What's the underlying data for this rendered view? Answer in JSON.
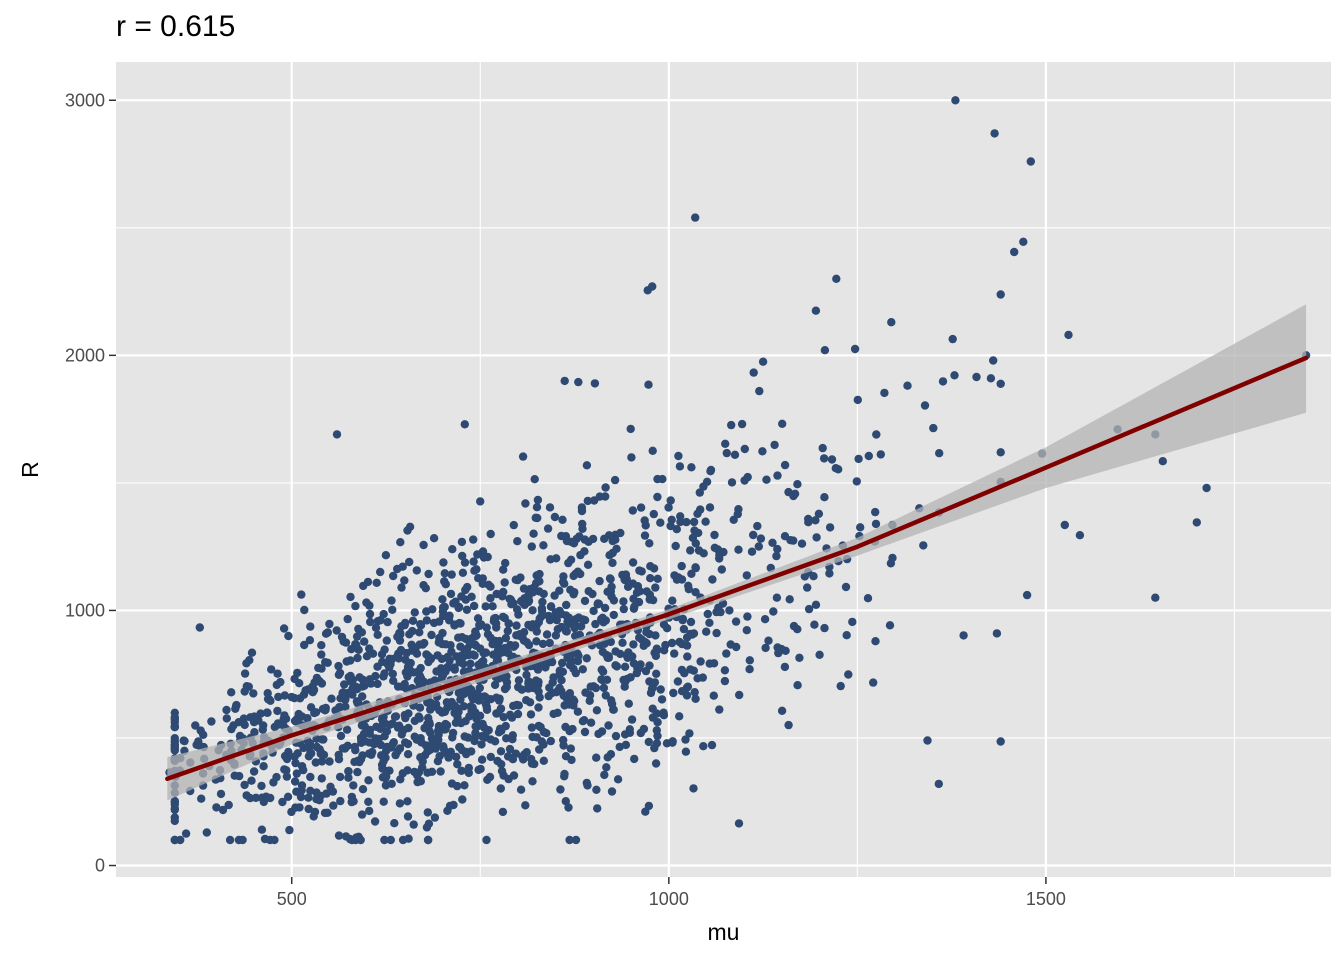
{
  "chart_data": {
    "type": "scatter",
    "title": "r = 0.615",
    "xlabel": "mu",
    "ylabel": "R",
    "xlim": [
      267,
      1878
    ],
    "ylim": [
      -45,
      3150
    ],
    "x_ticks": [
      500,
      1000,
      1500
    ],
    "x_tick_labels": [
      "500",
      "1000",
      "1500"
    ],
    "y_ticks": [
      0,
      1000,
      2000,
      3000
    ],
    "y_tick_labels": [
      "0",
      "1000",
      "2000",
      "3000"
    ],
    "x_minor_breaks": [
      750,
      1250,
      1750
    ],
    "y_minor_breaks": [
      500,
      1500,
      2500
    ],
    "grid": true,
    "legend": "none",
    "colors": {
      "panel": "#e5e5e5",
      "grid": "#ffffff",
      "points": "#2e4a73",
      "fit_line": "#800000",
      "confidence_band": "#b3b3b3"
    },
    "fit": {
      "method": "smooth",
      "line": [
        [
          335,
          340
        ],
        [
          500,
          510
        ],
        [
          750,
          745
        ],
        [
          1000,
          985
        ],
        [
          1250,
          1250
        ],
        [
          1500,
          1560
        ],
        [
          1845,
          1990
        ]
      ],
      "band_upper": [
        [
          335,
          425
        ],
        [
          500,
          545
        ],
        [
          750,
          770
        ],
        [
          1000,
          1005
        ],
        [
          1250,
          1285
        ],
        [
          1500,
          1640
        ],
        [
          1845,
          2200
        ]
      ],
      "band_lower": [
        [
          335,
          255
        ],
        [
          500,
          475
        ],
        [
          750,
          720
        ],
        [
          1000,
          965
        ],
        [
          1250,
          1215
        ],
        [
          1500,
          1480
        ],
        [
          1845,
          1775
        ]
      ]
    },
    "highlighted_points": [
      [
        1380,
        3000
      ],
      [
        1432,
        2870
      ],
      [
        1480,
        2760
      ],
      [
        1035,
        2540
      ],
      [
        1470,
        2445
      ],
      [
        1458,
        2405
      ],
      [
        1222,
        2300
      ],
      [
        978,
        2270
      ],
      [
        972,
        2255
      ],
      [
        1195,
        2175
      ],
      [
        1295,
        2130
      ],
      [
        1530,
        2080
      ],
      [
        1845,
        2000
      ],
      [
        1247,
        2025
      ],
      [
        1207,
        2020
      ],
      [
        1125,
        1975
      ],
      [
        1408,
        1915
      ],
      [
        1427,
        1910
      ],
      [
        862,
        1900
      ],
      [
        880,
        1895
      ],
      [
        902,
        1890
      ],
      [
        973,
        1885
      ],
      [
        1120,
        1860
      ],
      [
        560,
        1690
      ],
      [
        1595,
        1710
      ],
      [
        1645,
        1690
      ],
      [
        1655,
        1585
      ],
      [
        1713,
        1480
      ],
      [
        1700,
        1345
      ],
      [
        1645,
        1050
      ],
      [
        1358,
        320
      ],
      [
        1343,
        490
      ],
      [
        1093,
        165
      ],
      [
        655,
        105
      ],
      [
        338,
        365
      ],
      [
        345,
        175
      ],
      [
        360,
        125
      ],
      [
        1435,
        910
      ],
      [
        1475,
        1060
      ],
      [
        1525,
        1335
      ],
      [
        1545,
        1295
      ],
      [
        1495,
        1615
      ]
    ]
  }
}
